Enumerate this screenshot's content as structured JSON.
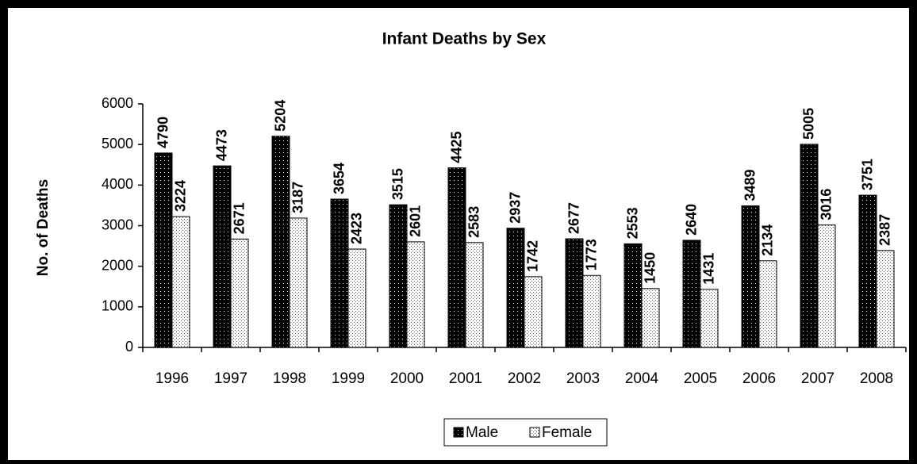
{
  "chart_data": {
    "type": "bar",
    "title": "Infant Deaths by Sex",
    "y_label": "No. of Deaths",
    "categories": [
      "1996",
      "1997",
      "1998",
      "1999",
      "2000",
      "2001",
      "2002",
      "2003",
      "2004",
      "2005",
      "2006",
      "2007",
      "2008"
    ],
    "series": [
      {
        "name": "Male",
        "color": "#000000",
        "values": [
          4790,
          4473,
          5204,
          3654,
          3515,
          4425,
          2937,
          2677,
          2553,
          2640,
          3489,
          5005,
          3751
        ]
      },
      {
        "name": "Female",
        "color": "#d8d8d8",
        "values": [
          3224,
          2671,
          3187,
          2423,
          2601,
          2583,
          1742,
          1773,
          1450,
          1431,
          2134,
          3016,
          2387
        ]
      }
    ],
    "ylim": [
      0,
      6000
    ],
    "yticks": [
      0,
      1000,
      2000,
      3000,
      4000,
      5000,
      6000
    ],
    "grid": false,
    "legend": "bottom"
  }
}
